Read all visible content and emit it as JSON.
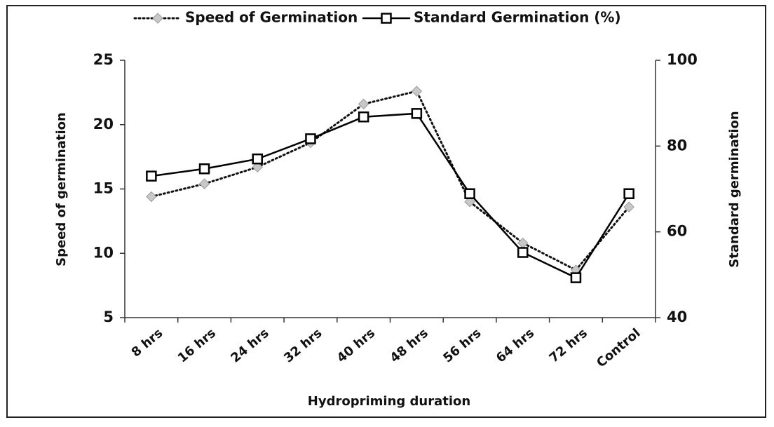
{
  "chart_data": {
    "type": "line",
    "x_label": "Hydropriming duration",
    "y_label": "Speed of germination",
    "y2_label": "Standard germination",
    "categories": [
      "8 hrs",
      "16 hrs",
      "24 hrs",
      "32 hrs",
      "40 hrs",
      "48 hrs",
      "56 hrs",
      "64 hrs",
      "72 hrs",
      "Control"
    ],
    "series": [
      {
        "name": "Speed of Germination",
        "color": "#999999",
        "line_style": "dotted",
        "marker": "diamond",
        "values": [
          14.4,
          15.4,
          16.7,
          18.6,
          21.6,
          22.6,
          14.0,
          10.8,
          8.7,
          13.6
        ]
      },
      {
        "name": "Standard Germination (%)",
        "color": "#000000",
        "line_style": "solid",
        "marker": "square",
        "axis": "y2",
        "values": [
          73.0,
          74.7,
          77.0,
          81.7,
          86.8,
          87.6,
          68.9,
          55.2,
          49.3,
          68.9
        ]
      }
    ],
    "ylim": [
      5,
      25
    ],
    "yticks": [
      5,
      10,
      15,
      20,
      25
    ],
    "y2lim": [
      40,
      100
    ],
    "y2ticks": [
      40,
      60,
      80,
      100
    ],
    "grid": false,
    "legend": "top"
  }
}
